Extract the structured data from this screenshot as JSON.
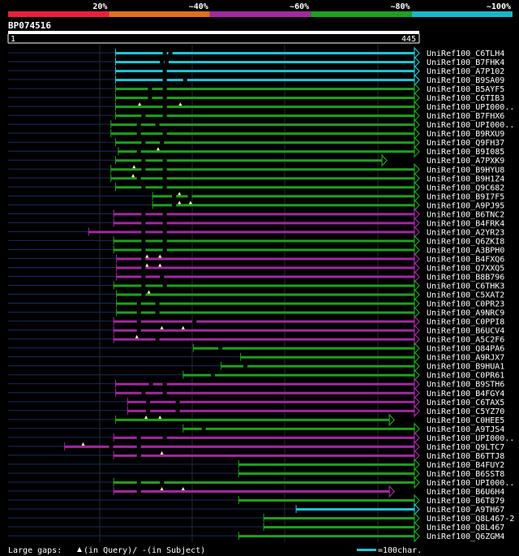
{
  "query_id": "BP074516",
  "query_start": "1",
  "query_end": "445",
  "query_length": 445,
  "color_scale": [
    {
      "label": "",
      "color": "#e8213b"
    },
    {
      "label": "20%",
      "color": "#e07020"
    },
    {
      "label": "~40%",
      "color": "#a02aa0"
    },
    {
      "label": "~60%",
      "color": "#1fa01f"
    },
    {
      "label": "~80%",
      "color": "#18b8c8"
    },
    {
      "label": "~100%",
      "color": "#18b8c8"
    }
  ],
  "colors": {
    "cyan": "#22c3d2",
    "green": "#1fa01f",
    "purple": "#a02aa0",
    "unaligned": "#1b2a5e",
    "grid": "#2a2a2a",
    "marker": "#ffffb0"
  },
  "hits": [
    {
      "name": "UniRef100_C6TLH4",
      "start": 117,
      "end": 445,
      "color": "cyan",
      "arrow": true,
      "q_gaps": [],
      "s_gaps": [
        168,
        174
      ]
    },
    {
      "name": "UniRef100_B7FHK4",
      "start": 117,
      "end": 445,
      "color": "cyan",
      "arrow": true,
      "q_gaps": [],
      "s_gaps": [
        165,
        170
      ]
    },
    {
      "name": "UniRef100_A7P102",
      "start": 117,
      "end": 445,
      "color": "cyan",
      "arrow": true,
      "q_gaps": [],
      "s_gaps": [
        168
      ]
    },
    {
      "name": "UniRef100_B9SA09",
      "start": 117,
      "end": 445,
      "color": "cyan",
      "arrow": true,
      "q_gaps": [],
      "s_gaps": [
        168,
        190
      ]
    },
    {
      "name": "UniRef100_B5AYF5",
      "start": 117,
      "end": 445,
      "color": "green",
      "arrow": true,
      "q_gaps": [],
      "s_gaps": [
        152,
        168
      ]
    },
    {
      "name": "UniRef100_C6TIB3",
      "start": 117,
      "end": 445,
      "color": "green",
      "arrow": true,
      "q_gaps": [],
      "s_gaps": [
        152,
        168
      ]
    },
    {
      "name": "UniRef100_UPI000..",
      "start": 117,
      "end": 445,
      "color": "green",
      "arrow": true,
      "q_gaps": [
        143,
        187
      ],
      "s_gaps": [
        168
      ]
    },
    {
      "name": "UniRef100_B7FHX6",
      "start": 117,
      "end": 445,
      "color": "green",
      "arrow": true,
      "q_gaps": [],
      "s_gaps": [
        145,
        168
      ]
    },
    {
      "name": "UniRef100_UPI000..",
      "start": 112,
      "end": 445,
      "color": "green",
      "arrow": true,
      "q_gaps": [],
      "s_gaps": [
        140,
        160
      ]
    },
    {
      "name": "UniRef100_B9RXU9",
      "start": 112,
      "end": 445,
      "color": "green",
      "arrow": true,
      "q_gaps": [],
      "s_gaps": [
        140,
        168
      ]
    },
    {
      "name": "UniRef100_Q9FH37",
      "start": 117,
      "end": 445,
      "color": "green",
      "arrow": true,
      "q_gaps": [],
      "s_gaps": [
        145,
        165
      ]
    },
    {
      "name": "UniRef100_B9I085",
      "start": 120,
      "end": 445,
      "color": "green",
      "arrow": true,
      "q_gaps": [
        163
      ],
      "s_gaps": [
        140
      ]
    },
    {
      "name": "UniRef100_A7PXK9",
      "start": 117,
      "end": 410,
      "color": "green",
      "arrow": true,
      "q_gaps": [],
      "s_gaps": [
        145,
        168
      ]
    },
    {
      "name": "UniRef100_B9HYU8",
      "start": 112,
      "end": 445,
      "color": "green",
      "arrow": true,
      "q_gaps": [
        137
      ],
      "s_gaps": [
        145,
        168
      ]
    },
    {
      "name": "UniRef100_B9H1Z4",
      "start": 112,
      "end": 445,
      "color": "green",
      "arrow": true,
      "q_gaps": [
        136
      ],
      "s_gaps": [
        140,
        168
      ]
    },
    {
      "name": "UniRef100_Q9C682",
      "start": 117,
      "end": 445,
      "color": "green",
      "arrow": true,
      "q_gaps": [],
      "s_gaps": [
        145,
        168
      ]
    },
    {
      "name": "UniRef100_B9I7F5",
      "start": 157,
      "end": 445,
      "color": "green",
      "arrow": true,
      "q_gaps": [
        186
      ],
      "s_gaps": [
        178,
        195
      ]
    },
    {
      "name": "UniRef100_A9PJ95",
      "start": 157,
      "end": 445,
      "color": "green",
      "arrow": true,
      "q_gaps": [
        186,
        198
      ],
      "s_gaps": [
        178
      ]
    },
    {
      "name": "UniRef100_B6TNC2",
      "start": 115,
      "end": 445,
      "color": "purple",
      "arrow": true,
      "q_gaps": [],
      "s_gaps": [
        145,
        168
      ]
    },
    {
      "name": "UniRef100_B4FRK4",
      "start": 115,
      "end": 445,
      "color": "purple",
      "arrow": true,
      "q_gaps": [],
      "s_gaps": [
        145,
        168
      ]
    },
    {
      "name": "UniRef100_A2YR23",
      "start": 88,
      "end": 445,
      "color": "purple",
      "arrow": true,
      "q_gaps": [],
      "s_gaps": [
        145,
        168
      ]
    },
    {
      "name": "UniRef100_Q6ZKI8",
      "start": 115,
      "end": 445,
      "color": "green",
      "arrow": true,
      "q_gaps": [],
      "s_gaps": [
        145,
        168
      ]
    },
    {
      "name": "UniRef100_A3BPH0",
      "start": 115,
      "end": 445,
      "color": "green",
      "arrow": true,
      "q_gaps": [],
      "s_gaps": [
        145,
        168
      ]
    },
    {
      "name": "UniRef100_B4FXQ6",
      "start": 118,
      "end": 445,
      "color": "purple",
      "arrow": true,
      "q_gaps": [
        151,
        165
      ],
      "s_gaps": [
        145
      ]
    },
    {
      "name": "UniRef100_Q7XXQ5",
      "start": 118,
      "end": 445,
      "color": "purple",
      "arrow": true,
      "q_gaps": [
        151,
        165
      ],
      "s_gaps": [
        145
      ]
    },
    {
      "name": "UniRef100_B8B796",
      "start": 118,
      "end": 445,
      "color": "purple",
      "arrow": true,
      "q_gaps": [],
      "s_gaps": [
        145,
        165
      ]
    },
    {
      "name": "UniRef100_C6THK3",
      "start": 115,
      "end": 445,
      "color": "green",
      "arrow": true,
      "q_gaps": [],
      "s_gaps": [
        145,
        168
      ]
    },
    {
      "name": "UniRef100_C5XAT2",
      "start": 118,
      "end": 445,
      "color": "green",
      "arrow": true,
      "q_gaps": [
        153
      ],
      "s_gaps": [
        145
      ]
    },
    {
      "name": "UniRef100_C0PR23",
      "start": 118,
      "end": 445,
      "color": "green",
      "arrow": true,
      "q_gaps": [],
      "s_gaps": [
        140,
        160
      ]
    },
    {
      "name": "UniRef100_A9NRC9",
      "start": 118,
      "end": 445,
      "color": "green",
      "arrow": true,
      "q_gaps": [],
      "s_gaps": [
        140,
        160
      ]
    },
    {
      "name": "UniRef100_C0PPI8",
      "start": 115,
      "end": 445,
      "color": "purple",
      "arrow": true,
      "q_gaps": [],
      "s_gaps": [
        140,
        200
      ]
    },
    {
      "name": "UniRef100_B6UCV4",
      "start": 115,
      "end": 445,
      "color": "purple",
      "arrow": true,
      "q_gaps": [
        167,
        190
      ],
      "s_gaps": [
        140
      ]
    },
    {
      "name": "UniRef100_A5C2F6",
      "start": 115,
      "end": 445,
      "color": "purple",
      "arrow": true,
      "q_gaps": [
        140
      ],
      "s_gaps": [
        160
      ]
    },
    {
      "name": "UniRef100_Q84PA6",
      "start": 201,
      "end": 445,
      "color": "green",
      "arrow": true,
      "q_gaps": [],
      "s_gaps": [
        228
      ]
    },
    {
      "name": "UniRef100_A9RJX7",
      "start": 252,
      "end": 445,
      "color": "green",
      "arrow": true,
      "q_gaps": [],
      "s_gaps": []
    },
    {
      "name": "UniRef100_B9HUA1",
      "start": 231,
      "end": 445,
      "color": "green",
      "arrow": true,
      "q_gaps": [],
      "s_gaps": [
        255
      ]
    },
    {
      "name": "UniRef100_C0PR61",
      "start": 190,
      "end": 445,
      "color": "green",
      "arrow": true,
      "q_gaps": [],
      "s_gaps": [
        220
      ]
    },
    {
      "name": "UniRef100_B9STH6",
      "start": 117,
      "end": 445,
      "color": "purple",
      "arrow": true,
      "q_gaps": [],
      "s_gaps": [
        153,
        168
      ]
    },
    {
      "name": "UniRef100_B4FGY4",
      "start": 117,
      "end": 445,
      "color": "purple",
      "arrow": true,
      "q_gaps": [],
      "s_gaps": [
        145,
        168
      ]
    },
    {
      "name": "UniRef100_C6TAX5",
      "start": 130,
      "end": 445,
      "color": "purple",
      "arrow": true,
      "q_gaps": [],
      "s_gaps": [
        150,
        182
      ]
    },
    {
      "name": "UniRef100_C5YZ70",
      "start": 130,
      "end": 445,
      "color": "purple",
      "arrow": true,
      "q_gaps": [],
      "s_gaps": [
        150,
        182
      ]
    },
    {
      "name": "UniRef100_C0HEE5",
      "start": 117,
      "end": 418,
      "color": "green",
      "arrow": true,
      "q_gaps": [
        150,
        165
      ],
      "s_gaps": []
    },
    {
      "name": "UniRef100_A9TJS4",
      "start": 190,
      "end": 445,
      "color": "green",
      "arrow": true,
      "q_gaps": [],
      "s_gaps": [
        210
      ]
    },
    {
      "name": "UniRef100_UPI000..",
      "start": 115,
      "end": 445,
      "color": "purple",
      "arrow": true,
      "q_gaps": [],
      "s_gaps": [
        140,
        168
      ]
    },
    {
      "name": "UniRef100_Q9LTC7",
      "start": 62,
      "end": 445,
      "color": "purple",
      "arrow": true,
      "q_gaps": [
        82
      ],
      "s_gaps": [
        110,
        140
      ]
    },
    {
      "name": "UniRef100_B6TTJ8",
      "start": 115,
      "end": 445,
      "color": "purple",
      "arrow": true,
      "q_gaps": [
        167
      ],
      "s_gaps": [
        140
      ]
    },
    {
      "name": "UniRef100_B4FUY2",
      "start": 250,
      "end": 445,
      "color": "green",
      "arrow": true,
      "q_gaps": [],
      "s_gaps": []
    },
    {
      "name": "UniRef100_B6SST8",
      "start": 250,
      "end": 445,
      "color": "green",
      "arrow": true,
      "q_gaps": [],
      "s_gaps": []
    },
    {
      "name": "UniRef100_UPI000..",
      "start": 115,
      "end": 445,
      "color": "green",
      "arrow": true,
      "q_gaps": [],
      "s_gaps": [
        140,
        165
      ]
    },
    {
      "name": "UniRef100_B6U6H4",
      "start": 115,
      "end": 418,
      "color": "purple",
      "arrow": true,
      "q_gaps": [
        167,
        190
      ],
      "s_gaps": [
        140
      ]
    },
    {
      "name": "UniRef100_B6T879",
      "start": 250,
      "end": 445,
      "color": "green",
      "arrow": true,
      "q_gaps": [],
      "s_gaps": []
    },
    {
      "name": "UniRef100_A9TH67",
      "start": 312,
      "end": 445,
      "color": "cyan",
      "arrow": true,
      "q_gaps": [],
      "s_gaps": []
    },
    {
      "name": "UniRef100_Q8L467-2",
      "start": 277,
      "end": 445,
      "color": "green",
      "arrow": true,
      "q_gaps": [],
      "s_gaps": []
    },
    {
      "name": "UniRef100_Q8L467",
      "start": 277,
      "end": 445,
      "color": "green",
      "arrow": true,
      "q_gaps": [],
      "s_gaps": []
    },
    {
      "name": "UniRef100_Q6ZGM4",
      "start": 250,
      "end": 445,
      "color": "green",
      "arrow": true,
      "q_gaps": [],
      "s_gaps": []
    }
  ],
  "footer": {
    "legend_prefix": "Large gaps: ",
    "legend_query": "(in Query)/",
    "legend_dash": "-",
    "legend_subject": " (in Subject)",
    "scale_label": "=100char."
  }
}
